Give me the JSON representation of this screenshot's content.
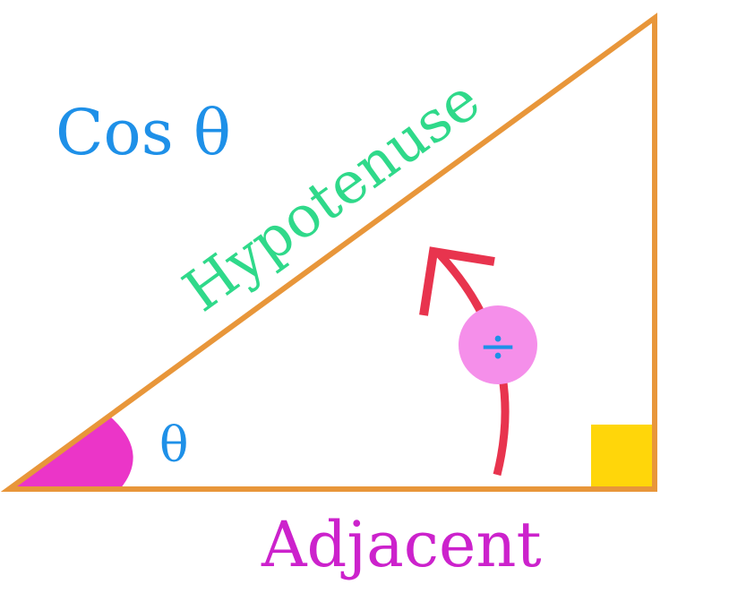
{
  "diagram": {
    "function_label": "Cos θ",
    "angle_symbol": "θ",
    "hypotenuse_label": "Hypotenuse",
    "adjacent_label": "Adjacent",
    "divide_symbol": "÷"
  },
  "colors": {
    "triangle": "#E8963A",
    "function_label": "#1E90E8",
    "angle_symbol": "#1E90E8",
    "hypotenuse_label": "#2FD98A",
    "adjacent_label": "#CC22CC",
    "angle_wedge": "#EB35C8",
    "right_angle_marker": "#FFD60A",
    "arrow": "#E8344E",
    "divide_circle": "#F58FEA",
    "divide_symbol": "#1E90E8"
  }
}
